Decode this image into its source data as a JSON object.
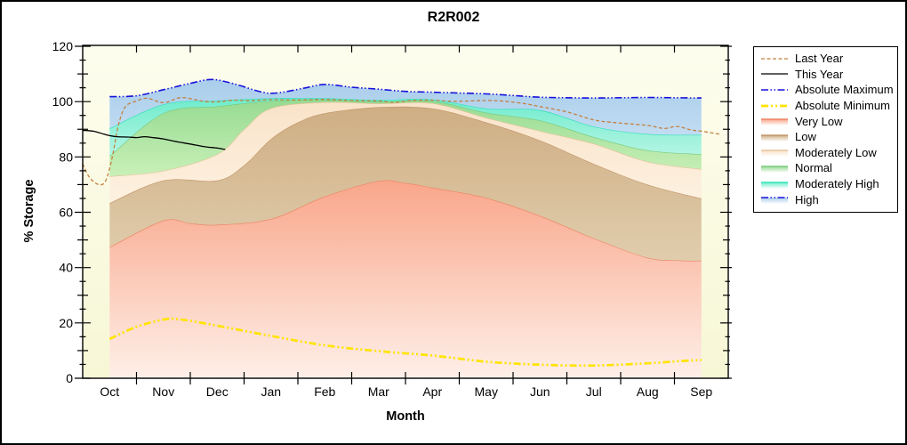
{
  "figure": {
    "title": "R2R002"
  },
  "axes": {
    "x_label": "Month",
    "y_label": "% Storage",
    "y_ticks": [
      0,
      20,
      40,
      60,
      80,
      100,
      120
    ],
    "months": [
      "Oct",
      "Nov",
      "Dec",
      "Jan",
      "Feb",
      "Mar",
      "Apr",
      "May",
      "Jun",
      "Jul",
      "Aug",
      "Sep"
    ]
  },
  "legend": {
    "items": [
      {
        "label": "Last Year",
        "kind": "line",
        "color": "#c2813f",
        "dash": "4 2.5",
        "width": 1.3
      },
      {
        "label": "This Year",
        "kind": "line",
        "color": "#000000",
        "dash": "",
        "width": 1.3
      },
      {
        "label": "Absolute Maximum",
        "kind": "line",
        "color": "#1812dc",
        "dash": "8 2.5 1.5 2.5 1.5 2.5",
        "width": 1.6
      },
      {
        "label": "Absolute Minimum",
        "kind": "line",
        "color": "#ffe400",
        "dash": "8 3 2 3 2 3",
        "width": 2.7
      },
      {
        "label": "Very Low",
        "kind": "band",
        "edge": "#ee8365",
        "fill": "#f9a68a"
      },
      {
        "label": "Low",
        "kind": "band",
        "edge": "#c2956b",
        "fill": "#cfae83"
      },
      {
        "label": "Moderately Low",
        "kind": "band",
        "edge": "#e5c29b",
        "fill": "#f9e3c9"
      },
      {
        "label": "Normal",
        "kind": "band",
        "edge": "#79ca7e",
        "fill": "#97db92"
      },
      {
        "label": "Moderately High",
        "kind": "band",
        "edge": "#30e2ba",
        "fill": "#6feccd"
      },
      {
        "label": "High",
        "kind": "band",
        "edge": "#1812dc",
        "edge_dash": "8 2.5 1.5 2.5 1.5 2.5",
        "fill": "#a9cdeb"
      }
    ]
  },
  "chart_data": {
    "type": "area",
    "title": "R2R002",
    "xlabel": "Month",
    "ylabel": "% Storage",
    "ylim": [
      0,
      120
    ],
    "grid": false,
    "legend_position": "right-outside",
    "categories": [
      "Oct",
      "Nov",
      "Dec",
      "Jan",
      "Feb",
      "Mar",
      "Apr",
      "May",
      "Jun",
      "Jul",
      "Aug",
      "Sep"
    ],
    "plot_bg_top": "#fdfdee",
    "plot_bg_bottom": "#f7f7d6",
    "bands": [
      {
        "name": "Very Low",
        "fill_top": "#f9a68a",
        "fill_bottom": "#feefe8",
        "edge": "#ee8365",
        "upper": [
          [
            0,
            47.4
          ],
          [
            1,
            57.0
          ],
          [
            1.5,
            56.0
          ],
          [
            2,
            55.5
          ],
          [
            3,
            57.6
          ],
          [
            4,
            65.7
          ],
          [
            5,
            71.3
          ],
          [
            5.5,
            70.6
          ],
          [
            6,
            68.9
          ],
          [
            7,
            65.2
          ],
          [
            8,
            58.7
          ],
          [
            9,
            50.6
          ],
          [
            10,
            43.6
          ],
          [
            10.6,
            42.6
          ],
          [
            11,
            42.5
          ]
        ]
      },
      {
        "name": "Low",
        "fill_top": "#cfae83",
        "fill_bottom": "#e0cdad",
        "edge": "#c2956b",
        "upper": [
          [
            0,
            63.3
          ],
          [
            1,
            71.5
          ],
          [
            2,
            71.5
          ],
          [
            2.5,
            77.0
          ],
          [
            3,
            86.5
          ],
          [
            3.5,
            92.5
          ],
          [
            4,
            95.8
          ],
          [
            5,
            98.0
          ],
          [
            6,
            97.5
          ],
          [
            7,
            92.5
          ],
          [
            8,
            86.0
          ],
          [
            9,
            77.5
          ],
          [
            10,
            70.0
          ],
          [
            11,
            65.0
          ]
        ]
      },
      {
        "name": "Moderately Low",
        "fill_top": "#f9e3c9",
        "fill_bottom": "#fdf1e0",
        "edge": "#e5c29b",
        "upper": [
          [
            0,
            73.0
          ],
          [
            1,
            75.0
          ],
          [
            2,
            81.0
          ],
          [
            2.5,
            90.0
          ],
          [
            3,
            97.6
          ],
          [
            4,
            99.8
          ],
          [
            5,
            99.3
          ],
          [
            6,
            99.4
          ],
          [
            7,
            94.2
          ],
          [
            8,
            89.4
          ],
          [
            9,
            84.8
          ],
          [
            10,
            78.3
          ],
          [
            11,
            75.6
          ]
        ]
      },
      {
        "name": "Normal",
        "fill_top": "#97db92",
        "fill_bottom": "#c9f0b8",
        "edge": "#79ca7e",
        "upper": [
          [
            0,
            80.3
          ],
          [
            1,
            95.8
          ],
          [
            2,
            98.3
          ],
          [
            3,
            100.2
          ],
          [
            4,
            100.6
          ],
          [
            5,
            100.0
          ],
          [
            6,
            100.2
          ],
          [
            7,
            96.0
          ],
          [
            8,
            93.2
          ],
          [
            9,
            87.2
          ],
          [
            10,
            82.4
          ],
          [
            11,
            81.0
          ]
        ]
      },
      {
        "name": "Moderately High",
        "fill_top": "#6feccd",
        "fill_bottom": "#b5f5e3",
        "edge": "#30e2ba",
        "upper": [
          [
            0,
            90.3
          ],
          [
            1,
            99.0
          ],
          [
            2,
            100.4
          ],
          [
            3,
            101.2
          ],
          [
            4,
            101.2
          ],
          [
            5,
            100.6
          ],
          [
            6,
            100.8
          ],
          [
            7,
            97.5
          ],
          [
            8,
            96.9
          ],
          [
            9,
            91.0
          ],
          [
            10,
            88.3
          ],
          [
            11,
            88.0
          ]
        ]
      },
      {
        "name": "High",
        "fill_top": "#a9cdeb",
        "fill_bottom": "#c2dcf2",
        "edge": null,
        "upper": [
          [
            0,
            101.8
          ],
          [
            0.5,
            102.1
          ],
          [
            1,
            104.3
          ],
          [
            1.5,
            106.6
          ],
          [
            1.9,
            108.0
          ],
          [
            2.3,
            106.5
          ],
          [
            2.8,
            103.6
          ],
          [
            3.1,
            103.1
          ],
          [
            3.6,
            104.8
          ],
          [
            4,
            106.2
          ],
          [
            4.5,
            105.2
          ],
          [
            5,
            104.5
          ],
          [
            5.5,
            103.7
          ],
          [
            6,
            103.4
          ],
          [
            6.5,
            103.1
          ],
          [
            7,
            102.8
          ],
          [
            7.5,
            102.2
          ],
          [
            8,
            101.6
          ],
          [
            8.5,
            101.4
          ],
          [
            9,
            101.3
          ],
          [
            9.5,
            101.4
          ],
          [
            10,
            101.5
          ],
          [
            10.5,
            101.4
          ],
          [
            11,
            101.3
          ]
        ]
      }
    ],
    "lines": [
      {
        "name": "Absolute Minimum",
        "color": "#ffe400",
        "width": 2.7,
        "dash": "8 3 2 3 2 3",
        "points": [
          [
            0,
            14.2
          ],
          [
            0.5,
            18.6
          ],
          [
            1,
            21.2
          ],
          [
            1.3,
            21.3
          ],
          [
            2,
            19.0
          ],
          [
            3,
            15.3
          ],
          [
            4,
            11.9
          ],
          [
            5,
            9.8
          ],
          [
            6,
            8.2
          ],
          [
            7,
            6.0
          ],
          [
            8,
            4.9
          ],
          [
            9,
            4.6
          ],
          [
            10,
            5.4
          ],
          [
            10.6,
            6.2
          ],
          [
            11,
            6.6
          ]
        ]
      },
      {
        "name": "Last Year",
        "color": "#c2813f",
        "width": 1.3,
        "dash": "4 2.5",
        "points": [
          [
            -0.5,
            77.5
          ],
          [
            -0.37,
            72.5
          ],
          [
            -0.2,
            70.0
          ],
          [
            -0.07,
            71.5
          ],
          [
            0.05,
            80.0
          ],
          [
            0.17,
            92.0
          ],
          [
            0.3,
            98.3
          ],
          [
            0.5,
            100.2
          ],
          [
            0.7,
            101.2
          ],
          [
            1,
            99.6
          ],
          [
            1.3,
            101.4
          ],
          [
            1.55,
            100.9
          ],
          [
            1.75,
            100.1
          ],
          [
            2,
            99.9
          ],
          [
            2.3,
            100.5
          ],
          [
            2.6,
            100.3
          ],
          [
            3,
            100.7
          ],
          [
            3.5,
            100.6
          ],
          [
            4,
            100.8
          ],
          [
            4.5,
            100.4
          ],
          [
            5,
            100.2
          ],
          [
            5.3,
            99.7
          ],
          [
            5.6,
            100.4
          ],
          [
            6,
            100.5
          ],
          [
            6.4,
            100.1
          ],
          [
            7,
            100.4
          ],
          [
            7.3,
            100.2
          ],
          [
            7.7,
            99.3
          ],
          [
            8,
            98.2
          ],
          [
            8.5,
            96.3
          ],
          [
            9,
            93.4
          ],
          [
            9.4,
            92.4
          ],
          [
            10,
            91.4
          ],
          [
            10.3,
            90.3
          ],
          [
            10.55,
            91.0
          ],
          [
            10.8,
            89.8
          ],
          [
            11,
            89.3
          ],
          [
            11.35,
            88.2
          ]
        ]
      },
      {
        "name": "This Year",
        "color": "#000000",
        "width": 1.3,
        "dash": "",
        "points": [
          [
            -0.5,
            89.6
          ],
          [
            -0.3,
            89.3
          ],
          [
            -0.1,
            88.2
          ],
          [
            0,
            87.7
          ],
          [
            0.15,
            87.3
          ],
          [
            0.35,
            87.2
          ],
          [
            0.5,
            87.0
          ],
          [
            0.65,
            87.3
          ],
          [
            0.8,
            87.0
          ],
          [
            1,
            86.5
          ],
          [
            1.2,
            85.7
          ],
          [
            1.4,
            85.0
          ],
          [
            1.6,
            84.3
          ],
          [
            1.8,
            83.6
          ],
          [
            2,
            83.2
          ],
          [
            2.15,
            82.7
          ]
        ]
      },
      {
        "name": "Absolute Maximum",
        "color": "#1812dc",
        "width": 1.6,
        "dash": "8 2.5 1.5 2.5 1.5 2.5",
        "points": [
          [
            0,
            101.8
          ],
          [
            0.5,
            102.1
          ],
          [
            1,
            104.3
          ],
          [
            1.5,
            106.6
          ],
          [
            1.9,
            108.0
          ],
          [
            2.3,
            106.5
          ],
          [
            2.8,
            103.6
          ],
          [
            3.1,
            103.1
          ],
          [
            3.6,
            104.8
          ],
          [
            4,
            106.2
          ],
          [
            4.5,
            105.2
          ],
          [
            5,
            104.5
          ],
          [
            5.5,
            103.7
          ],
          [
            6,
            103.4
          ],
          [
            6.5,
            103.1
          ],
          [
            7,
            102.8
          ],
          [
            7.5,
            102.2
          ],
          [
            8,
            101.6
          ],
          [
            8.5,
            101.4
          ],
          [
            9,
            101.3
          ],
          [
            9.5,
            101.4
          ],
          [
            10,
            101.5
          ],
          [
            10.5,
            101.4
          ],
          [
            11,
            101.3
          ]
        ]
      }
    ]
  }
}
